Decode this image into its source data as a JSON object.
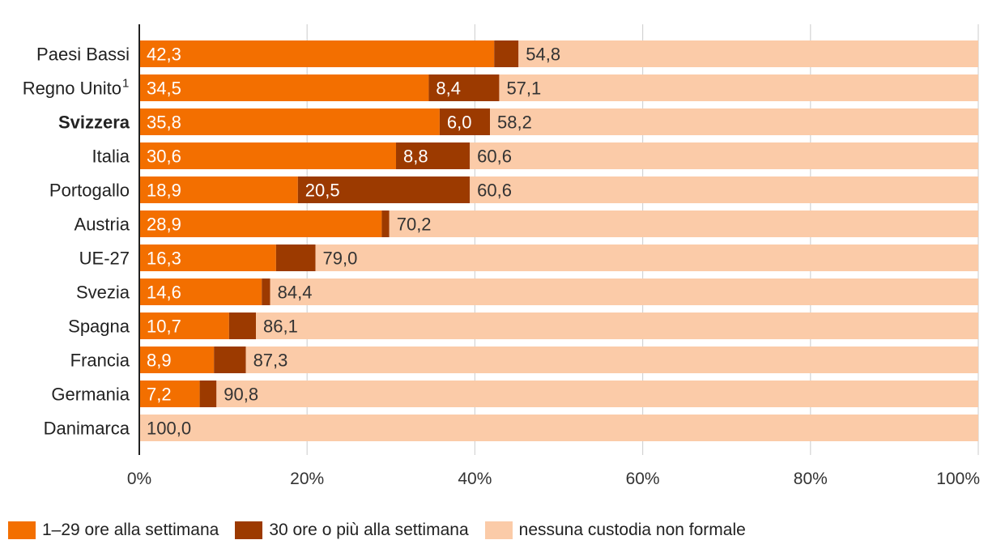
{
  "chart_data": {
    "type": "bar",
    "orientation": "horizontal",
    "stacked": true,
    "categories": [
      "Paesi Bassi",
      "Regno Unito",
      "Svizzera",
      "Italia",
      "Portogallo",
      "Austria",
      "UE-27",
      "Svezia",
      "Spagna",
      "Francia",
      "Germania",
      "Danimarca"
    ],
    "category_footnotes": [
      "",
      "1",
      "",
      "",
      "",
      "",
      "",
      "",
      "",
      "",
      "",
      ""
    ],
    "highlight_category": "Svizzera",
    "series": [
      {
        "name": "1–29  ore alla settimana",
        "color": "#f36f00",
        "label_color": "#ffffff",
        "values": [
          42.3,
          34.5,
          35.8,
          30.6,
          18.9,
          28.9,
          16.3,
          14.6,
          10.7,
          8.9,
          7.2,
          0
        ],
        "labels": [
          "42,3",
          "34,5",
          "35,8",
          "30,6",
          "18,9",
          "28,9",
          "16,3",
          "14,6",
          "10,7",
          "8,9",
          "7,2",
          ""
        ]
      },
      {
        "name": "30 ore o più alla settimana",
        "color": "#9c3a00",
        "label_color": "#ffffff",
        "values": [
          2.9,
          8.4,
          6.0,
          8.8,
          20.5,
          0.9,
          4.7,
          1.0,
          3.2,
          3.8,
          2.0,
          0
        ],
        "labels": [
          "",
          "8,4",
          "6,0",
          "8,8",
          "20,5",
          "",
          "",
          "",
          "",
          "",
          "",
          ""
        ]
      },
      {
        "name": "nessuna custodia non formale",
        "color": "#fbcba8",
        "label_color": "#333333",
        "values": [
          54.8,
          57.1,
          58.2,
          60.6,
          60.6,
          70.2,
          79.0,
          84.4,
          86.1,
          87.3,
          90.8,
          100.0
        ],
        "labels": [
          "54,8",
          "57,1",
          "58,2",
          "60,6",
          "60,6",
          "70,2",
          "79,0",
          "84,4",
          "86,1",
          "87,3",
          "90,8",
          "100,0"
        ]
      }
    ],
    "xlim": [
      0,
      100
    ],
    "xticks": [
      0,
      20,
      40,
      60,
      80,
      100
    ],
    "xtick_labels": [
      "0%",
      "20%",
      "40%",
      "60%",
      "80%",
      "100%"
    ],
    "grid": true,
    "legend_position": "bottom-left",
    "title": "",
    "xlabel": "",
    "ylabel": ""
  }
}
